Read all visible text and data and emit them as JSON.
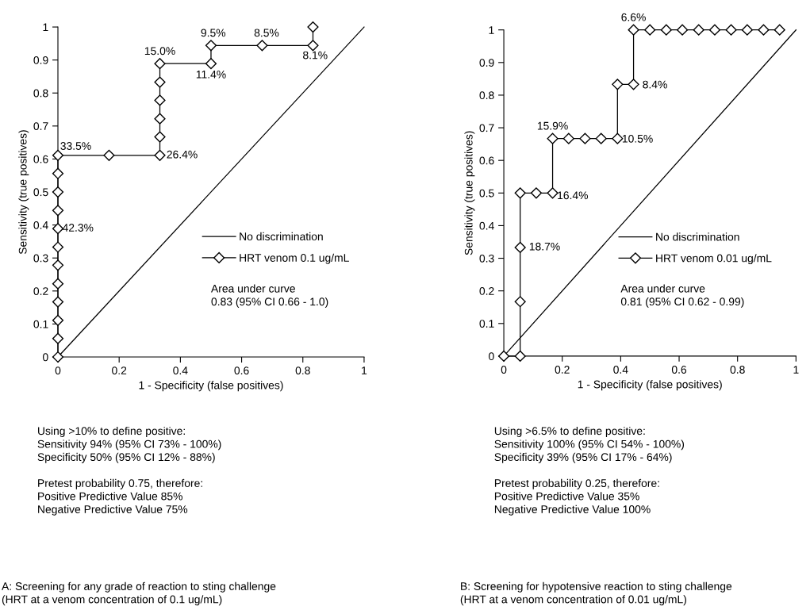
{
  "chart_data": [
    {
      "type": "line",
      "xlabel": "1 - Specificity (false positives)",
      "ylabel": "Sensitivity (true positives)",
      "xlim": [
        0,
        1
      ],
      "ylim": [
        0,
        1
      ],
      "xticks": [
        0,
        0.2,
        0.4,
        0.6,
        0.8,
        1
      ],
      "yticks": [
        0,
        0.1,
        0.2,
        0.3,
        0.4,
        0.5,
        0.6,
        0.7,
        0.8,
        0.9,
        1
      ],
      "grid": false,
      "legend": "right",
      "series": [
        {
          "name": "No discrimination",
          "color": "#000000",
          "x": [
            0,
            1
          ],
          "values": [
            0,
            1
          ]
        },
        {
          "name": "HRT venom 0.1 ug/mL",
          "color": "#000000",
          "marker": "diamond",
          "x": [
            0,
            0,
            0,
            0,
            0,
            0,
            0,
            0,
            0,
            0,
            0,
            0,
            0.167,
            0.333,
            0.333,
            0.333,
            0.333,
            0.333,
            0.333,
            0.5,
            0.5,
            0.667,
            0.833,
            0.833
          ],
          "values": [
            0,
            0.056,
            0.111,
            0.167,
            0.222,
            0.278,
            0.333,
            0.389,
            0.444,
            0.5,
            0.556,
            0.611,
            0.611,
            0.611,
            0.667,
            0.722,
            0.778,
            0.833,
            0.889,
            0.889,
            0.944,
            0.944,
            0.944,
            1
          ]
        }
      ],
      "annotations": [
        {
          "text": "42.3%",
          "x": 0,
          "y": 0.389
        },
        {
          "text": "33.5%",
          "x": 0,
          "y": 0.611
        },
        {
          "text": "26.4%",
          "x": 0.333,
          "y": 0.611
        },
        {
          "text": "15.0%",
          "x": 0.333,
          "y": 0.889
        },
        {
          "text": "11.4%",
          "x": 0.5,
          "y": 0.889
        },
        {
          "text": "9.5%",
          "x": 0.5,
          "y": 0.944
        },
        {
          "text": "8.5%",
          "x": 0.667,
          "y": 0.944
        },
        {
          "text": "8.1%",
          "x": 0.833,
          "y": 0.944
        },
        "Area under curve\n0.83 (95% CI 0.66 - 1.0)",
        "Using >10% to define positive:\nSensitivity 94% (95% CI 73% - 100%)\nSpecificity 50% (95% CI 12% - 88%)\n\nPretest probability 0.75, therefore:\nPositive Predictive Value 85%\nNegative Predictive Value 75%",
        "A: Screening for any grade of reaction to sting challenge\n(HRT at a venom concentration of 0.1 ug/mL)"
      ]
    },
    {
      "type": "line",
      "xlabel": "1 - Specificity (false positives)",
      "ylabel": "Sensitivity (true positives)",
      "xlim": [
        0,
        1
      ],
      "ylim": [
        0,
        1
      ],
      "xticks": [
        0,
        0.2,
        0.4,
        0.6,
        0.8,
        1
      ],
      "yticks": [
        0,
        0.1,
        0.2,
        0.3,
        0.4,
        0.5,
        0.6,
        0.7,
        0.8,
        0.9,
        1
      ],
      "grid": false,
      "legend": "right",
      "series": [
        {
          "name": "No discrimination",
          "color": "#000000",
          "x": [
            0,
            1
          ],
          "values": [
            0,
            1
          ]
        },
        {
          "name": "HRT venom 0.01 ug/mL",
          "color": "#000000",
          "marker": "diamond",
          "x": [
            0,
            0.056,
            0.056,
            0.056,
            0.056,
            0.111,
            0.167,
            0.167,
            0.222,
            0.278,
            0.333,
            0.389,
            0.389,
            0.444,
            0.444,
            0.5,
            0.556,
            0.611,
            0.667,
            0.722,
            0.778,
            0.833,
            0.889,
            0.944
          ],
          "values": [
            0,
            0,
            0.167,
            0.333,
            0.5,
            0.5,
            0.5,
            0.667,
            0.667,
            0.667,
            0.667,
            0.667,
            0.833,
            0.833,
            1,
            1,
            1,
            1,
            1,
            1,
            1,
            1,
            1,
            1
          ]
        }
      ],
      "annotations": [
        {
          "text": "18.7%",
          "x": 0.056,
          "y": 0.333
        },
        {
          "text": "16.4%",
          "x": 0.167,
          "y": 0.5
        },
        {
          "text": "15.9%",
          "x": 0.167,
          "y": 0.667
        },
        {
          "text": "10.5%",
          "x": 0.389,
          "y": 0.667
        },
        {
          "text": "8.4%",
          "x": 0.444,
          "y": 0.833
        },
        {
          "text": "6.6%",
          "x": 0.444,
          "y": 1
        },
        "Area under curve\n0.81 (95% CI 0.62 - 0.99)",
        "Using >6.5% to define positive:\nSensitivity 100% (95% CI 54% - 100%)\nSpecificity 39% (95% CI 17% - 64%)\n\nPretest probability 0.25, therefore:\nPositive Predictive Value 35%\nNegative Predictive Value 100%",
        "B: Screening for hypotensive reaction to sting challenge\n(HRT at a venom concentration of 0.01 ug/mL)"
      ]
    }
  ]
}
